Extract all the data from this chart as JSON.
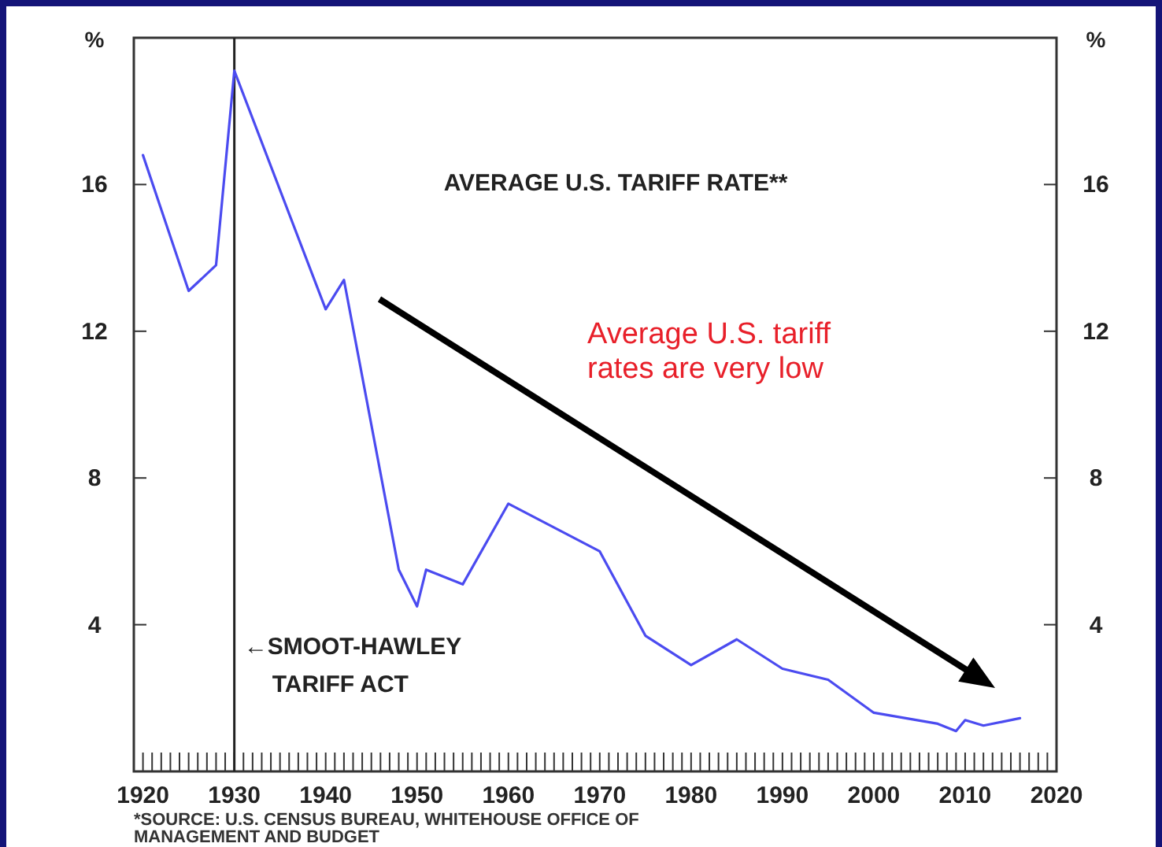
{
  "chart_data": {
    "type": "line",
    "title": "AVERAGE U.S. TARIFF RATE**",
    "ylabel": "%",
    "y2label": "%",
    "x": [
      1920,
      1925,
      1928,
      1930,
      1940,
      1942,
      1948,
      1950,
      1951,
      1955,
      1960,
      1970,
      1975,
      1980,
      1985,
      1990,
      1995,
      2000,
      2007,
      2009,
      2010,
      2012,
      2014,
      2016
    ],
    "series": [
      {
        "color": "#4b4bf0",
        "values": [
          16.8,
          13.1,
          13.8,
          19.1,
          12.6,
          13.4,
          5.5,
          4.5,
          5.5,
          5.1,
          7.3,
          6.0,
          3.7,
          2.9,
          3.6,
          2.8,
          2.5,
          1.6,
          1.3,
          1.1,
          1.4,
          1.25,
          1.35,
          1.45
        ]
      }
    ],
    "xlim": [
      1919,
      2020
    ],
    "xticks": [
      1920,
      {
        "value": 1921,
        "label": null
      },
      {
        "value": 1922,
        "label": null
      },
      {
        "value": 1923,
        "label": null
      },
      {
        "value": 1924,
        "label": null
      },
      {
        "value": 1925,
        "label": null
      },
      {
        "value": 1926,
        "label": null
      },
      {
        "value": 1927,
        "label": null
      },
      {
        "value": 1928,
        "label": null
      },
      {
        "value": 1929,
        "label": null
      },
      1930,
      {
        "value": 1931,
        "label": null
      },
      {
        "value": 1932,
        "label": null
      },
      {
        "value": 1933,
        "label": null
      },
      {
        "value": 1934,
        "label": null
      },
      {
        "value": 1935,
        "label": null
      },
      {
        "value": 1936,
        "label": null
      },
      {
        "value": 1937,
        "label": null
      },
      {
        "value": 1938,
        "label": null
      },
      {
        "value": 1939,
        "label": null
      },
      1940,
      {
        "value": 1941,
        "label": null
      },
      {
        "value": 1942,
        "label": null
      },
      {
        "value": 1943,
        "label": null
      },
      {
        "value": 1944,
        "label": null
      },
      {
        "value": 1945,
        "label": null
      },
      {
        "value": 1946,
        "label": null
      },
      {
        "value": 1947,
        "label": null
      },
      {
        "value": 1948,
        "label": null
      },
      {
        "value": 1949,
        "label": null
      },
      1950,
      {
        "value": 1951,
        "label": null
      },
      {
        "value": 1952,
        "label": null
      },
      {
        "value": 1953,
        "label": null
      },
      {
        "value": 1954,
        "label": null
      },
      {
        "value": 1955,
        "label": null
      },
      {
        "value": 1956,
        "label": null
      },
      {
        "value": 1957,
        "label": null
      },
      {
        "value": 1958,
        "label": null
      },
      {
        "value": 1959,
        "label": null
      },
      1960,
      {
        "value": 1961,
        "label": null
      },
      {
        "value": 1962,
        "label": null
      },
      {
        "value": 1963,
        "label": null
      },
      {
        "value": 1964,
        "label": null
      },
      {
        "value": 1965,
        "label": null
      },
      {
        "value": 1966,
        "label": null
      },
      {
        "value": 1967,
        "label": null
      },
      {
        "value": 1968,
        "label": null
      },
      {
        "value": 1969,
        "label": null
      },
      1970,
      {
        "value": 1971,
        "label": null
      },
      {
        "value": 1972,
        "label": null
      },
      {
        "value": 1973,
        "label": null
      },
      {
        "value": 1974,
        "label": null
      },
      {
        "value": 1975,
        "label": null
      },
      {
        "value": 1976,
        "label": null
      },
      {
        "value": 1977,
        "label": null
      },
      {
        "value": 1978,
        "label": null
      },
      {
        "value": 1979,
        "label": null
      },
      1980,
      {
        "value": 1981,
        "label": null
      },
      {
        "value": 1982,
        "label": null
      },
      {
        "value": 1983,
        "label": null
      },
      {
        "value": 1984,
        "label": null
      },
      {
        "value": 1985,
        "label": null
      },
      {
        "value": 1986,
        "label": null
      },
      {
        "value": 1987,
        "label": null
      },
      {
        "value": 1988,
        "label": null
      },
      {
        "value": 1989,
        "label": null
      },
      1990,
      {
        "value": 1991,
        "label": null
      },
      {
        "value": 1992,
        "label": null
      },
      {
        "value": 1993,
        "label": null
      },
      {
        "value": 1994,
        "label": null
      },
      {
        "value": 1995,
        "label": null
      },
      {
        "value": 1996,
        "label": null
      },
      {
        "value": 1997,
        "label": null
      },
      {
        "value": 1998,
        "label": null
      },
      {
        "value": 1999,
        "label": null
      },
      2000,
      {
        "value": 2001,
        "label": null
      },
      {
        "value": 2002,
        "label": null
      },
      {
        "value": 2003,
        "label": null
      },
      {
        "value": 2004,
        "label": null
      },
      {
        "value": 2005,
        "label": null
      },
      {
        "value": 2006,
        "label": null
      },
      {
        "value": 2007,
        "label": null
      },
      {
        "value": 2008,
        "label": null
      },
      {
        "value": 2009,
        "label": null
      },
      2010,
      {
        "value": 2011,
        "label": null
      },
      {
        "value": 2012,
        "label": null
      },
      {
        "value": 2013,
        "label": null
      },
      {
        "value": 2014,
        "label": null
      },
      {
        "value": 2015,
        "label": null
      },
      {
        "value": 2016,
        "label": null
      },
      {
        "value": 2017,
        "label": null
      },
      {
        "value": 2018,
        "label": null
      },
      {
        "value": 2019,
        "label": null
      },
      2020
    ],
    "ylim": [
      0,
      20
    ],
    "yticks": [
      4,
      8,
      12,
      16
    ],
    "y2lim": [
      0,
      20
    ],
    "y2ticks": [
      4,
      8,
      12,
      16
    ],
    "ref_lines": [
      {
        "axis": "x",
        "value": 1930,
        "label": "←SMOOT-HAWLEY\nTARIFF ACT",
        "color": "#222222"
      }
    ],
    "annotations": [
      "Average U.S. tariff\nrates are very low",
      "*SOURCE: U.S. CENSUS BUREAU, WHITEHOUSE OFFICE OF\nMANAGEMENT AND BUDGET"
    ],
    "grid": false,
    "marker": "none",
    "line_style": "solid"
  }
}
